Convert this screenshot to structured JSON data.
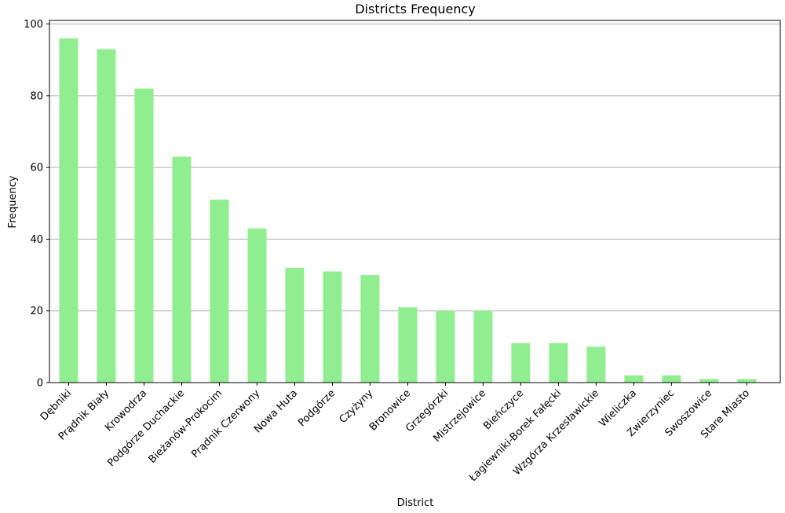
{
  "chart_data": {
    "type": "bar",
    "title": "Districts Frequency",
    "xlabel": "District",
    "ylabel": "Frequency",
    "ylim": [
      0,
      101
    ],
    "yticks": [
      0,
      20,
      40,
      60,
      80,
      100
    ],
    "grid": "y",
    "bar_color": "#90ee90",
    "categories": [
      "Dębniki",
      "Prądnik Biały",
      "Krowodrza",
      "Podgórze Duchackie",
      "Bieżanów-Prokocim",
      "Prądnik Czerwony",
      "Nowa Huta",
      "Podgórze",
      "Czyżyny",
      "Bronowice",
      "Grzegórzki",
      "Mistrzejowice",
      "Bieńczyce",
      "Łagiewniki-Borek Fałęcki",
      "Wzgórza Krzesławickie",
      "Wieliczka",
      "Zwierzyniec",
      "Swoszowice",
      "Stare Miasto"
    ],
    "values": [
      96,
      93,
      82,
      63,
      51,
      43,
      32,
      31,
      30,
      21,
      20,
      20,
      11,
      11,
      10,
      2,
      2,
      1,
      1
    ]
  }
}
